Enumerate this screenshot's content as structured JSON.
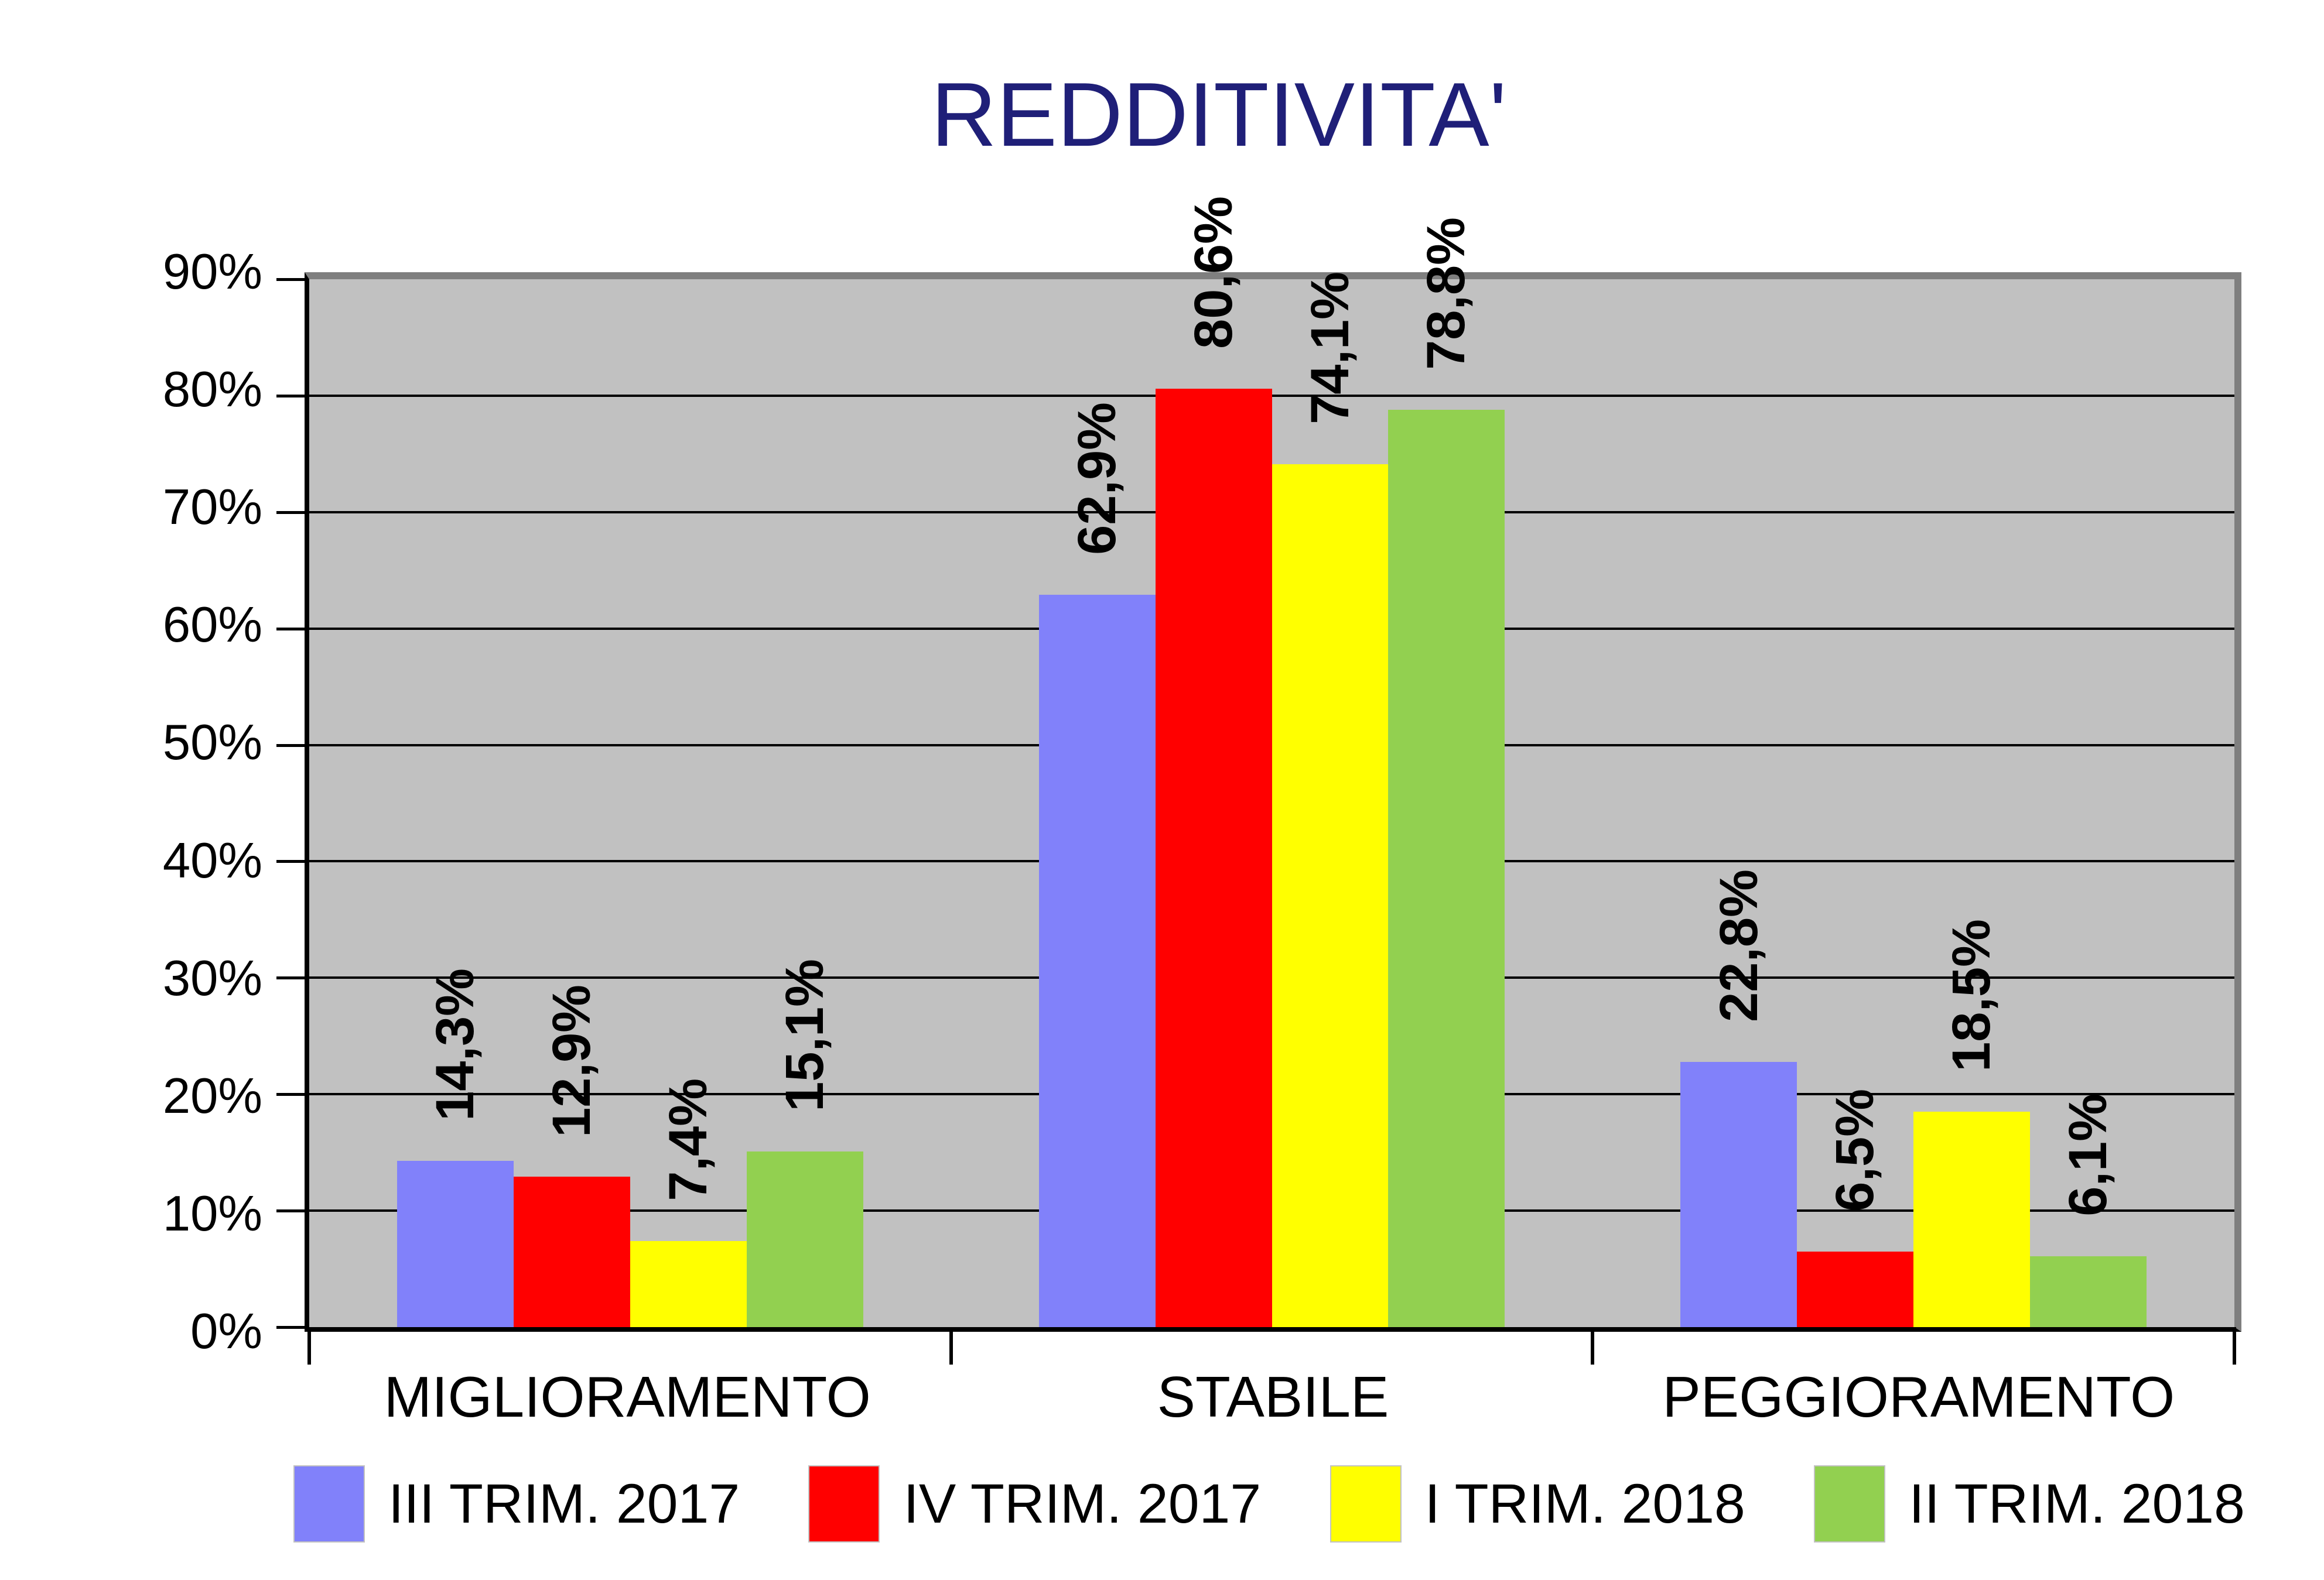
{
  "title": "REDDITIVITA'",
  "chart_data": {
    "type": "bar",
    "title": "REDDITIVITA'",
    "categories": [
      "MIGLIORAMENTO",
      "STABILE",
      "PEGGIORAMENTO"
    ],
    "series": [
      {
        "name": "III TRIM. 2017",
        "color": "#8181fa",
        "values": [
          14.3,
          62.9,
          22.8
        ],
        "data_labels": [
          "14,3%",
          "62,9%",
          "22,8%"
        ]
      },
      {
        "name": "IV TRIM. 2017",
        "color": "#ff0000",
        "values": [
          12.9,
          80.6,
          6.5
        ],
        "data_labels": [
          "12,9%",
          "80,6%",
          "6,5%"
        ]
      },
      {
        "name": "I TRIM. 2018",
        "color": "#ffff00",
        "values": [
          7.4,
          74.1,
          18.5
        ],
        "data_labels": [
          "7,4%",
          "74,1%",
          "18,5%"
        ]
      },
      {
        "name": "II TRIM. 2018",
        "color": "#92d050",
        "values": [
          15.1,
          78.8,
          6.1
        ],
        "data_labels": [
          "15,1%",
          "78,8%",
          "6,1%"
        ]
      }
    ],
    "ylim": [
      0,
      90
    ],
    "ytick_step": 10,
    "ytick_labels": [
      "0%",
      "10%",
      "20%",
      "30%",
      "40%",
      "50%",
      "60%",
      "70%",
      "80%",
      "90%"
    ],
    "grid": "horizontal",
    "legend_position": "bottom",
    "decimal_separator": ",",
    "colors": {
      "plot_background": "#c1c1c1",
      "plot_border": "#7f7f7f",
      "gridline": "#000000",
      "axis": "#000000",
      "title": "#1f1f78",
      "label_text": "#000000"
    }
  }
}
